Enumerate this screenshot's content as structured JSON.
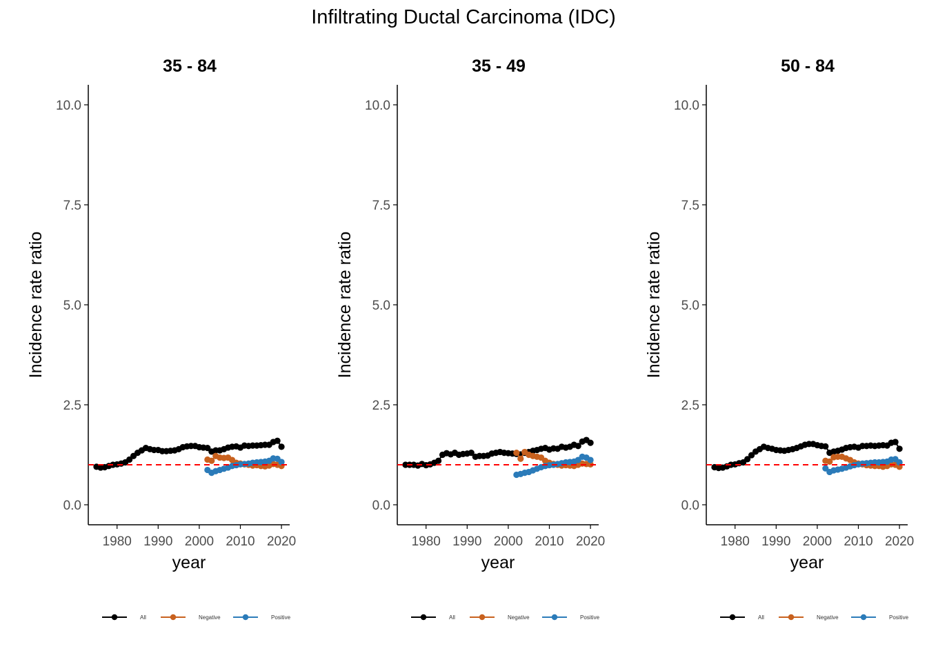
{
  "figure": {
    "title": "Infiltrating Ductal Carcinoma (IDC)"
  },
  "colors": {
    "All": "#000000",
    "Negative": "#c8611e",
    "Positive": "#2b7bb9",
    "reference_line": "#ff0000",
    "axis": "#000000",
    "tick_text": "#4d4d4d"
  },
  "chart_data": [
    {
      "type": "line",
      "title": "35 - 84",
      "xlabel": "year",
      "ylabel": "Incidence rate ratio",
      "xlim": [
        1973,
        2022
      ],
      "ylim": [
        -0.5,
        10.5
      ],
      "xticks": [
        1980,
        1990,
        2000,
        2010,
        2020
      ],
      "xtick_labels": [
        "1980",
        "1990",
        "2000",
        "2010",
        "2020"
      ],
      "yticks": [
        0,
        2.5,
        5,
        7.5,
        10
      ],
      "ytick_labels": [
        "0.0",
        "2.5",
        "5.0",
        "7.5",
        "10.0"
      ],
      "reference_line": 1.0,
      "grid": false,
      "legend": {
        "position": "bottom",
        "entries": [
          "All",
          "Negative",
          "Positive"
        ]
      },
      "series": [
        {
          "name": "All",
          "x": [
            1975,
            1976,
            1977,
            1978,
            1979,
            1980,
            1981,
            1982,
            1983,
            1984,
            1985,
            1986,
            1987,
            1988,
            1989,
            1990,
            1991,
            1992,
            1993,
            1994,
            1995,
            1996,
            1997,
            1998,
            1999,
            2000,
            2001,
            2002,
            2003,
            2004,
            2005,
            2006,
            2007,
            2008,
            2009,
            2010,
            2011,
            2012,
            2013,
            2014,
            2015,
            2016,
            2017,
            2018,
            2019,
            2020
          ],
          "values": [
            0.95,
            0.93,
            0.94,
            0.97,
            1.0,
            1.01,
            1.03,
            1.06,
            1.13,
            1.22,
            1.3,
            1.36,
            1.42,
            1.39,
            1.37,
            1.37,
            1.34,
            1.34,
            1.35,
            1.36,
            1.39,
            1.44,
            1.46,
            1.47,
            1.47,
            1.44,
            1.43,
            1.42,
            1.33,
            1.36,
            1.36,
            1.39,
            1.43,
            1.45,
            1.46,
            1.43,
            1.48,
            1.47,
            1.48,
            1.48,
            1.49,
            1.5,
            1.5,
            1.57,
            1.6,
            1.45
          ]
        },
        {
          "name": "Negative",
          "x": [
            2002,
            2003,
            2004,
            2005,
            2006,
            2007,
            2008,
            2009,
            2010,
            2011,
            2012,
            2013,
            2014,
            2015,
            2016,
            2017,
            2018,
            2019,
            2020
          ],
          "values": [
            1.13,
            1.1,
            1.22,
            1.18,
            1.17,
            1.18,
            1.12,
            1.05,
            1.03,
            1.01,
            1.0,
            0.98,
            0.99,
            0.97,
            0.96,
            0.98,
            1.02,
            1.0,
            0.97
          ]
        },
        {
          "name": "Positive",
          "x": [
            2002,
            2003,
            2004,
            2005,
            2006,
            2007,
            2008,
            2009,
            2010,
            2011,
            2012,
            2013,
            2014,
            2015,
            2016,
            2017,
            2018,
            2019,
            2020
          ],
          "values": [
            0.87,
            0.8,
            0.84,
            0.87,
            0.9,
            0.93,
            0.97,
            0.99,
            1.01,
            1.02,
            1.03,
            1.05,
            1.06,
            1.07,
            1.08,
            1.1,
            1.16,
            1.15,
            1.07
          ]
        }
      ]
    },
    {
      "type": "line",
      "title": "35 - 49",
      "xlabel": "year",
      "ylabel": "Incidence rate ratio",
      "xlim": [
        1973,
        2022
      ],
      "ylim": [
        -0.5,
        10.5
      ],
      "xticks": [
        1980,
        1990,
        2000,
        2010,
        2020
      ],
      "xtick_labels": [
        "1980",
        "1990",
        "2000",
        "2010",
        "2020"
      ],
      "yticks": [
        0,
        2.5,
        5,
        7.5,
        10
      ],
      "ytick_labels": [
        "0.0",
        "2.5",
        "5.0",
        "7.5",
        "10.0"
      ],
      "reference_line": 1.0,
      "grid": false,
      "legend": {
        "position": "bottom",
        "entries": [
          "All",
          "Negative",
          "Positive"
        ]
      },
      "series": [
        {
          "name": "All",
          "x": [
            1975,
            1976,
            1977,
            1978,
            1979,
            1980,
            1981,
            1982,
            1983,
            1984,
            1985,
            1986,
            1987,
            1988,
            1989,
            1990,
            1991,
            1992,
            1993,
            1994,
            1995,
            1996,
            1997,
            1998,
            1999,
            2000,
            2001,
            2002,
            2003,
            2004,
            2005,
            2006,
            2007,
            2008,
            2009,
            2010,
            2011,
            2012,
            2013,
            2014,
            2015,
            2016,
            2017,
            2018,
            2019,
            2020
          ],
          "values": [
            1.0,
            1.0,
            1.0,
            0.98,
            1.02,
            0.99,
            1.01,
            1.05,
            1.1,
            1.25,
            1.29,
            1.26,
            1.3,
            1.25,
            1.27,
            1.28,
            1.3,
            1.2,
            1.22,
            1.22,
            1.23,
            1.28,
            1.3,
            1.32,
            1.3,
            1.29,
            1.28,
            1.27,
            1.26,
            1.3,
            1.32,
            1.35,
            1.37,
            1.4,
            1.42,
            1.38,
            1.41,
            1.4,
            1.45,
            1.43,
            1.45,
            1.5,
            1.47,
            1.58,
            1.62,
            1.55
          ]
        },
        {
          "name": "Negative",
          "x": [
            2002,
            2003,
            2004,
            2005,
            2006,
            2007,
            2008,
            2009,
            2010,
            2011,
            2012,
            2013,
            2014,
            2015,
            2016,
            2017,
            2018,
            2019,
            2020
          ],
          "values": [
            1.3,
            1.15,
            1.32,
            1.25,
            1.22,
            1.2,
            1.18,
            1.1,
            1.05,
            1.02,
            1.0,
            0.98,
            0.99,
            0.98,
            0.97,
            1.0,
            1.03,
            1.02,
            1.01
          ]
        },
        {
          "name": "Positive",
          "x": [
            2002,
            2003,
            2004,
            2005,
            2006,
            2007,
            2008,
            2009,
            2010,
            2011,
            2012,
            2013,
            2014,
            2015,
            2016,
            2017,
            2018,
            2019,
            2020
          ],
          "values": [
            0.75,
            0.77,
            0.8,
            0.82,
            0.86,
            0.9,
            0.94,
            0.97,
            0.99,
            1.0,
            1.02,
            1.04,
            1.06,
            1.07,
            1.08,
            1.12,
            1.2,
            1.18,
            1.12
          ]
        }
      ]
    },
    {
      "type": "line",
      "title": "50 - 84",
      "xlabel": "year",
      "ylabel": "Incidence rate ratio",
      "xlim": [
        1973,
        2022
      ],
      "ylim": [
        -0.5,
        10.5
      ],
      "xticks": [
        1980,
        1990,
        2000,
        2010,
        2020
      ],
      "xtick_labels": [
        "1980",
        "1990",
        "2000",
        "2010",
        "2020"
      ],
      "yticks": [
        0,
        2.5,
        5,
        7.5,
        10
      ],
      "ytick_labels": [
        "0.0",
        "2.5",
        "5.0",
        "7.5",
        "10.0"
      ],
      "reference_line": 1.0,
      "grid": false,
      "legend": {
        "position": "bottom",
        "entries": [
          "All",
          "Negative",
          "Positive"
        ]
      },
      "series": [
        {
          "name": "All",
          "x": [
            1975,
            1976,
            1977,
            1978,
            1979,
            1980,
            1981,
            1982,
            1983,
            1984,
            1985,
            1986,
            1987,
            1988,
            1989,
            1990,
            1991,
            1992,
            1993,
            1994,
            1995,
            1996,
            1997,
            1998,
            1999,
            2000,
            2001,
            2002,
            2003,
            2004,
            2005,
            2006,
            2007,
            2008,
            2009,
            2010,
            2011,
            2012,
            2013,
            2014,
            2015,
            2016,
            2017,
            2018,
            2019,
            2020
          ],
          "values": [
            0.94,
            0.92,
            0.93,
            0.96,
            1.0,
            1.01,
            1.04,
            1.06,
            1.14,
            1.24,
            1.33,
            1.39,
            1.45,
            1.42,
            1.4,
            1.37,
            1.36,
            1.35,
            1.37,
            1.39,
            1.42,
            1.46,
            1.5,
            1.52,
            1.52,
            1.49,
            1.47,
            1.46,
            1.3,
            1.33,
            1.35,
            1.38,
            1.42,
            1.44,
            1.45,
            1.43,
            1.47,
            1.47,
            1.48,
            1.47,
            1.48,
            1.49,
            1.48,
            1.55,
            1.57,
            1.4
          ]
        },
        {
          "name": "Negative",
          "x": [
            2002,
            2003,
            2004,
            2005,
            2006,
            2007,
            2008,
            2009,
            2010,
            2011,
            2012,
            2013,
            2014,
            2015,
            2016,
            2017,
            2018,
            2019,
            2020
          ],
          "values": [
            1.1,
            1.08,
            1.19,
            1.2,
            1.2,
            1.16,
            1.12,
            1.06,
            1.03,
            1.01,
            0.99,
            0.98,
            0.97,
            0.97,
            0.95,
            0.97,
            1.01,
            1.0,
            0.95
          ]
        },
        {
          "name": "Positive",
          "x": [
            2002,
            2003,
            2004,
            2005,
            2006,
            2007,
            2008,
            2009,
            2010,
            2011,
            2012,
            2013,
            2014,
            2015,
            2016,
            2017,
            2018,
            2019,
            2020
          ],
          "values": [
            0.91,
            0.82,
            0.86,
            0.88,
            0.9,
            0.93,
            0.96,
            0.99,
            1.01,
            1.03,
            1.04,
            1.05,
            1.06,
            1.06,
            1.07,
            1.08,
            1.13,
            1.14,
            1.06
          ]
        }
      ]
    }
  ]
}
